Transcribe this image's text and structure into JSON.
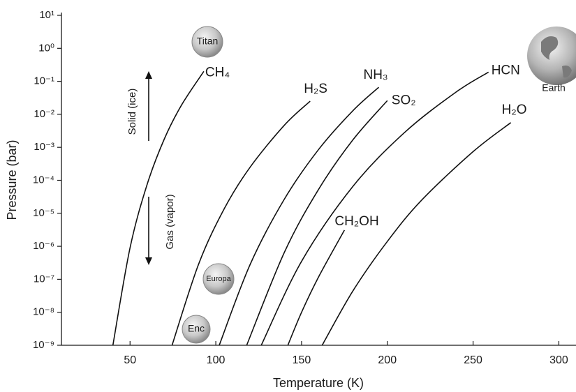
{
  "chart_data": {
    "type": "line",
    "xlabel": "Temperature (K)",
    "ylabel": "Pressure (bar)",
    "xlim": [
      10,
      310
    ],
    "xticks": [
      50,
      100,
      150,
      200,
      250,
      300
    ],
    "ylim": [
      1e-09,
      10
    ],
    "log_y": true,
    "yticks": [
      {
        "value": 10,
        "label": "10¹"
      },
      {
        "value": 1,
        "label": "10⁰"
      },
      {
        "value": 0.1,
        "label": "10⁻¹"
      },
      {
        "value": 0.01,
        "label": "10⁻²"
      },
      {
        "value": 0.001,
        "label": "10⁻³"
      },
      {
        "value": 0.0001,
        "label": "10⁻⁴"
      },
      {
        "value": 1e-05,
        "label": "10⁻⁵"
      },
      {
        "value": 1e-06,
        "label": "10⁻⁶"
      },
      {
        "value": 1e-07,
        "label": "10⁻⁷"
      },
      {
        "value": 1e-08,
        "label": "10⁻⁸"
      },
      {
        "value": 1e-09,
        "label": "10⁻⁹"
      }
    ],
    "grid": false,
    "series": [
      {
        "name": "CH₄",
        "color": "#111111",
        "x": [
          40,
          50,
          60,
          70,
          80,
          93
        ],
        "values": [
          1e-09,
          9e-07,
          7.6e-05,
          0.0018,
          0.019,
          0.2
        ]
      },
      {
        "name": "H₂S",
        "color": "#111111",
        "x": [
          74.5,
          90,
          105,
          120,
          140,
          155
        ],
        "values": [
          1e-09,
          2.9e-07,
          1.4e-05,
          0.00025,
          0.0047,
          0.025
        ]
      },
      {
        "name": "NH₃",
        "color": "#111111",
        "x": [
          102,
          120,
          140,
          160,
          180,
          195
        ],
        "values": [
          1e-09,
          2.8e-07,
          2.7e-05,
          0.00087,
          0.013,
          0.066
        ]
      },
      {
        "name": "SO₂",
        "color": "#111111",
        "x": [
          118,
          140,
          160,
          180,
          200
        ],
        "values": [
          1e-09,
          6.6e-07,
          5.4e-05,
          0.0017,
          0.026
        ]
      },
      {
        "name": "HCN",
        "color": "#111111",
        "x": [
          126.5,
          150,
          180,
          210,
          240,
          259
        ],
        "values": [
          1e-09,
          3.5e-07,
          6.6e-05,
          0.0028,
          0.047,
          0.19
        ]
      },
      {
        "name": "CH₂OH",
        "color": "#111111",
        "x": [
          142,
          150,
          160,
          175
        ],
        "values": [
          1e-09,
          1e-08,
          1.2e-07,
          3.1e-06
        ]
      },
      {
        "name": "H₂O",
        "color": "#111111",
        "x": [
          162,
          180,
          200,
          220,
          250,
          272
        ],
        "values": [
          1e-09,
          4.5e-08,
          1.4e-06,
          2.5e-05,
          0.00074,
          0.0056
        ]
      }
    ],
    "annotations": [
      "Titan",
      "Europa",
      "Enc",
      "Earth",
      "Solid (ice)",
      "Gas (vapor)"
    ]
  }
}
